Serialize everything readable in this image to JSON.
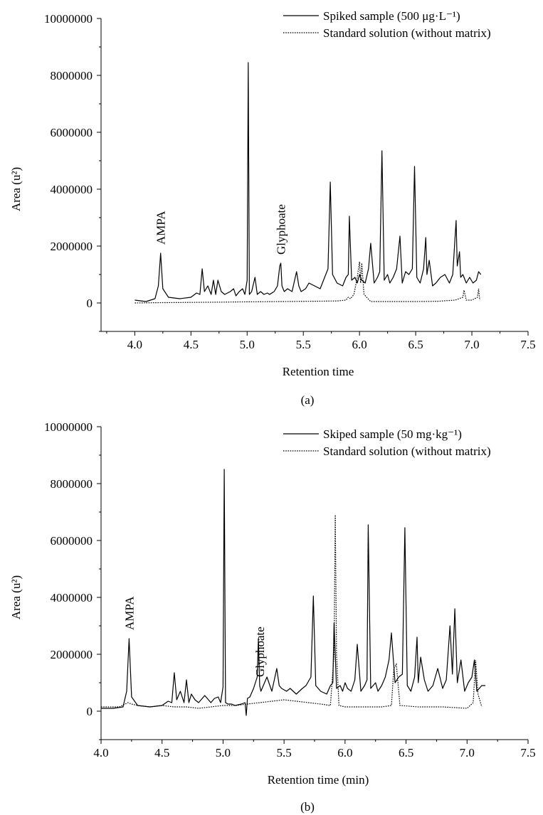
{
  "chart_data": [
    {
      "type": "line",
      "panel_label": "(a)",
      "xlabel": "Retention time",
      "ylabel": "Area (u²)",
      "xlim": [
        3.7,
        7.5
      ],
      "ylim": [
        -1000000,
        10000000
      ],
      "x_ticks": [
        "4.0",
        "4.5",
        "5.0",
        "5.5",
        "6.0",
        "6.5",
        "7.0",
        "7.5"
      ],
      "y_ticks": [
        "0",
        "2000000",
        "4000000",
        "6000000",
        "8000000",
        "10000000"
      ],
      "legend_position": "top-right",
      "annotations": [
        {
          "text": "AMPA",
          "x": 4.23
        },
        {
          "text": "Glyphoate",
          "x": 5.3
        }
      ],
      "series": [
        {
          "name": "Spiked sample (500 μg·L⁻¹)",
          "style": "solid",
          "x": [
            4.0,
            4.1,
            4.18,
            4.21,
            4.23,
            4.25,
            4.3,
            4.4,
            4.5,
            4.55,
            4.58,
            4.6,
            4.62,
            4.65,
            4.68,
            4.7,
            4.72,
            4.74,
            4.77,
            4.8,
            4.85,
            4.88,
            4.9,
            4.93,
            4.96,
            4.98,
            5.0,
            5.01,
            5.02,
            5.04,
            5.07,
            5.09,
            5.12,
            5.15,
            5.18,
            5.2,
            5.24,
            5.27,
            5.29,
            5.3,
            5.31,
            5.33,
            5.36,
            5.4,
            5.44,
            5.46,
            5.48,
            5.52,
            5.55,
            5.6,
            5.65,
            5.68,
            5.72,
            5.74,
            5.76,
            5.8,
            5.85,
            5.88,
            5.9,
            5.91,
            5.93,
            5.96,
            5.98,
            6.0,
            6.02,
            6.05,
            6.08,
            6.1,
            6.13,
            6.16,
            6.18,
            6.2,
            6.22,
            6.25,
            6.27,
            6.3,
            6.33,
            6.36,
            6.38,
            6.41,
            6.44,
            6.47,
            6.49,
            6.51,
            6.54,
            6.57,
            6.59,
            6.6,
            6.62,
            6.65,
            6.68,
            6.72,
            6.76,
            6.8,
            6.83,
            6.86,
            6.87,
            6.89,
            6.9,
            6.92,
            6.95,
            6.98,
            7.01,
            7.04,
            7.06,
            7.08
          ],
          "y": [
            100000,
            50000,
            150000,
            600000,
            1750000,
            500000,
            200000,
            150000,
            200000,
            350000,
            300000,
            1200000,
            400000,
            600000,
            300000,
            800000,
            300000,
            800000,
            400000,
            300000,
            400000,
            500000,
            250000,
            400000,
            500000,
            300000,
            800000,
            8450000,
            300000,
            400000,
            900000,
            300000,
            400000,
            300000,
            350000,
            300000,
            400000,
            600000,
            1300000,
            1400000,
            600000,
            400000,
            500000,
            400000,
            1100000,
            600000,
            400000,
            500000,
            700000,
            600000,
            500000,
            800000,
            1200000,
            4250000,
            1000000,
            700000,
            600000,
            900000,
            1000000,
            3050000,
            800000,
            900000,
            700000,
            1000000,
            800000,
            700000,
            1200000,
            2100000,
            700000,
            900000,
            1100000,
            5350000,
            800000,
            1000000,
            700000,
            900000,
            1200000,
            2350000,
            700000,
            1100000,
            1000000,
            1200000,
            4800000,
            900000,
            700000,
            1200000,
            2300000,
            1000000,
            1500000,
            600000,
            700000,
            900000,
            1000000,
            700000,
            1000000,
            2900000,
            1300000,
            1800000,
            900000,
            1000000,
            700000,
            900000,
            700000,
            800000,
            1100000,
            1000000
          ]
        },
        {
          "name": "Standard solution (without matrix)",
          "style": "dotted",
          "x": [
            4.0,
            4.2,
            4.5,
            4.8,
            5.0,
            5.3,
            5.6,
            5.8,
            5.88,
            5.9,
            5.92,
            5.95,
            5.98,
            6.0,
            6.01,
            6.02,
            6.04,
            6.1,
            6.3,
            6.5,
            6.7,
            6.85,
            6.92,
            6.93,
            6.95,
            7.0,
            7.05,
            7.06,
            7.07
          ],
          "y": [
            0,
            10000,
            20000,
            30000,
            40000,
            50000,
            60000,
            70000,
            100000,
            200000,
            150000,
            300000,
            900000,
            1450000,
            700000,
            1400000,
            300000,
            50000,
            50000,
            50000,
            60000,
            100000,
            200000,
            450000,
            100000,
            100000,
            200000,
            500000,
            100000
          ]
        }
      ]
    },
    {
      "type": "line",
      "panel_label": "(b)",
      "xlabel": "Retention time (min)",
      "ylabel": "Area (u²)",
      "xlim": [
        4.0,
        7.5
      ],
      "ylim": [
        -1000000,
        10000000
      ],
      "x_ticks": [
        "4.0",
        "4.5",
        "5.0",
        "5.5",
        "6.0",
        "6.5",
        "7.0",
        "7.5"
      ],
      "y_ticks": [
        "0",
        "2000000",
        "4000000",
        "6000000",
        "8000000",
        "10000000"
      ],
      "legend_position": "top-right",
      "annotations": [
        {
          "text": "AMPA",
          "x": 4.23
        },
        {
          "text": "Glyphoate",
          "x": 5.3
        }
      ],
      "series": [
        {
          "name": "Skiped sample (50 mg·kg⁻¹)",
          "style": "solid",
          "x": [
            4.0,
            4.1,
            4.18,
            4.21,
            4.23,
            4.25,
            4.3,
            4.4,
            4.5,
            4.55,
            4.58,
            4.6,
            4.62,
            4.65,
            4.68,
            4.7,
            4.72,
            4.74,
            4.77,
            4.8,
            4.85,
            4.88,
            4.9,
            4.93,
            4.96,
            4.98,
            5.0,
            5.01,
            5.02,
            5.04,
            5.07,
            5.1,
            5.15,
            5.18,
            5.19,
            5.2,
            5.22,
            5.25,
            5.28,
            5.29,
            5.3,
            5.31,
            5.33,
            5.36,
            5.4,
            5.44,
            5.46,
            5.48,
            5.52,
            5.55,
            5.6,
            5.65,
            5.68,
            5.72,
            5.74,
            5.76,
            5.8,
            5.85,
            5.88,
            5.9,
            5.91,
            5.93,
            5.96,
            5.98,
            6.0,
            6.02,
            6.05,
            6.08,
            6.1,
            6.13,
            6.16,
            6.18,
            6.19,
            6.21,
            6.25,
            6.27,
            6.3,
            6.33,
            6.36,
            6.38,
            6.41,
            6.44,
            6.47,
            6.49,
            6.51,
            6.54,
            6.57,
            6.59,
            6.6,
            6.62,
            6.65,
            6.68,
            6.72,
            6.76,
            6.8,
            6.83,
            6.86,
            6.88,
            6.9,
            6.92,
            6.95,
            6.98,
            7.01,
            7.04,
            7.06,
            7.08,
            7.12,
            7.15
          ],
          "y": [
            100000,
            100000,
            150000,
            700000,
            2550000,
            500000,
            200000,
            150000,
            200000,
            350000,
            300000,
            1350000,
            400000,
            700000,
            300000,
            1100000,
            300000,
            600000,
            400000,
            300000,
            550000,
            400000,
            300000,
            450000,
            500000,
            300000,
            850000,
            8500000,
            300000,
            250000,
            250000,
            200000,
            250000,
            300000,
            -150000,
            450000,
            500000,
            800000,
            1200000,
            2550000,
            900000,
            700000,
            900000,
            1200000,
            700000,
            1500000,
            900000,
            800000,
            700000,
            800000,
            600000,
            800000,
            900000,
            1200000,
            4050000,
            900000,
            700000,
            600000,
            900000,
            1000000,
            3100000,
            800000,
            900000,
            700000,
            1000000,
            800000,
            700000,
            1100000,
            2350000,
            700000,
            900000,
            1100000,
            6550000,
            800000,
            1000000,
            700000,
            900000,
            1200000,
            1800000,
            2750000,
            1000000,
            1200000,
            1300000,
            6450000,
            900000,
            700000,
            1200000,
            2600000,
            1000000,
            1900000,
            1100000,
            700000,
            900000,
            1500000,
            800000,
            1100000,
            3000000,
            1300000,
            3600000,
            1000000,
            1800000,
            700000,
            1000000,
            1200000,
            1800000,
            700000,
            900000,
            900000
          ]
        },
        {
          "name": "Standard solution (without matrix)",
          "style": "dotted",
          "x": [
            4.0,
            4.15,
            4.22,
            4.25,
            4.3,
            4.4,
            4.5,
            4.6,
            4.7,
            4.8,
            4.9,
            5.0,
            5.1,
            5.2,
            5.3,
            5.4,
            5.5,
            5.6,
            5.7,
            5.8,
            5.88,
            5.91,
            5.92,
            5.93,
            5.95,
            6.0,
            6.1,
            6.2,
            6.3,
            6.38,
            6.4,
            6.42,
            6.45,
            6.6,
            6.8,
            7.0,
            7.05,
            7.07,
            7.09,
            7.12
          ],
          "y": [
            150000,
            150000,
            300000,
            250000,
            200000,
            150000,
            200000,
            150000,
            150000,
            100000,
            150000,
            200000,
            200000,
            250000,
            300000,
            350000,
            400000,
            350000,
            300000,
            250000,
            200000,
            2000000,
            6900000,
            2000000,
            200000,
            150000,
            150000,
            150000,
            150000,
            200000,
            1500000,
            1650000,
            200000,
            150000,
            150000,
            100000,
            300000,
            1800000,
            600000,
            150000
          ]
        }
      ]
    }
  ]
}
